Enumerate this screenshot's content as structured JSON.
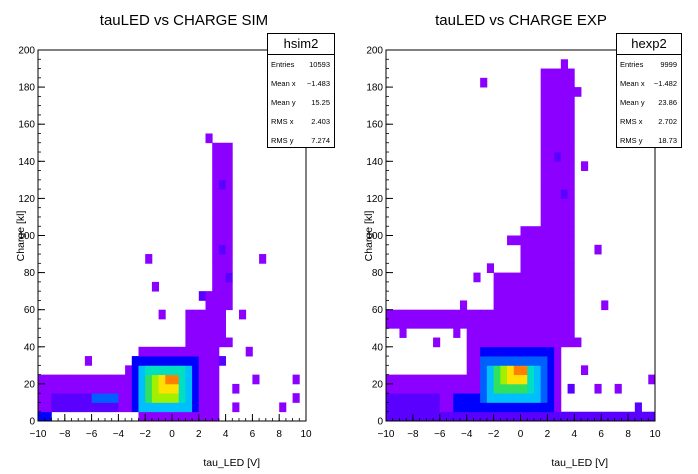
{
  "colors": {
    "palette": [
      "#8B00FF",
      "#5A00FF",
      "#0000FF",
      "#0060FF",
      "#00BFFF",
      "#00E0C0",
      "#30E060",
      "#A0F000",
      "#FFE000",
      "#FF8000",
      "#FF0000"
    ]
  },
  "chart_data": [
    {
      "type": "heatmap",
      "title": "tauLED vs CHARGE SIM",
      "xlabel": "tau_LED [V]",
      "ylabel": "Charge [kl]",
      "xlim": [
        -10,
        10
      ],
      "ylim": [
        0,
        200
      ],
      "bin_size": [
        0.5,
        5
      ],
      "x_ticks": [
        "−10",
        "−8",
        "−6",
        "−4",
        "−2",
        "0",
        "2",
        "4",
        "6",
        "8",
        "10"
      ],
      "y_ticks": [
        "0",
        "20",
        "40",
        "60",
        "80",
        "100",
        "120",
        "140",
        "160",
        "180",
        "200"
      ],
      "grid": false,
      "legend": "top-right",
      "stats": {
        "name": "hsim2",
        "rows": [
          {
            "label": "Entries",
            "value": "10593"
          },
          {
            "label": "Mean x",
            "value": "−1.483"
          },
          {
            "label": "Mean y",
            "value": "15.25"
          },
          {
            "label": "RMS x",
            "value": "2.403"
          },
          {
            "label": "RMS y",
            "value": "7.274"
          }
        ]
      },
      "clusters": [
        {
          "x": [
            -10,
            -2.5
          ],
          "y": [
            5,
            25
          ],
          "level": 1
        },
        {
          "x": [
            -2.5,
            2.5
          ],
          "y": [
            0,
            40
          ],
          "level": 1
        },
        {
          "x": [
            -9,
            -4
          ],
          "y": [
            5,
            15
          ],
          "level": 2
        },
        {
          "x": [
            -3,
            2
          ],
          "y": [
            5,
            35
          ],
          "level": 3
        },
        {
          "x": [
            -6,
            -4
          ],
          "y": [
            10,
            15
          ],
          "level": 4
        },
        {
          "x": [
            -2.5,
            1.5
          ],
          "y": [
            5,
            30
          ],
          "level": 5
        },
        {
          "x": [
            -2,
            1
          ],
          "y": [
            10,
            30
          ],
          "level": 6
        },
        {
          "x": [
            -2,
            0.5
          ],
          "y": [
            10,
            25
          ],
          "level": 7
        },
        {
          "x": [
            -1.5,
            0.5
          ],
          "y": [
            10,
            25
          ],
          "level": 8
        },
        {
          "x": [
            -1,
            0.5
          ],
          "y": [
            15,
            25
          ],
          "level": 9
        },
        {
          "x": [
            -0.5,
            0.5
          ],
          "y": [
            20,
            25
          ],
          "level": 10
        },
        {
          "x": [
            3,
            4.5
          ],
          "y": [
            60,
            150
          ],
          "level": 1
        },
        {
          "x": [
            2.5,
            4
          ],
          "y": [
            40,
            70
          ],
          "level": 1
        },
        {
          "x": [
            2.5,
            3.5
          ],
          "y": [
            0,
            45
          ],
          "level": 1
        },
        {
          "x": [
            1,
            2.5
          ],
          "y": [
            35,
            60
          ],
          "level": 1
        },
        {
          "x": [
            -10,
            -9
          ],
          "y": [
            0,
            5
          ],
          "level": 3
        }
      ],
      "cells": [
        {
          "x": 2.5,
          "y": 150,
          "level": 1
        },
        {
          "x": 3,
          "y": 135,
          "level": 1
        },
        {
          "x": 3.5,
          "y": 125,
          "level": 2
        },
        {
          "x": 4,
          "y": 110,
          "level": 1
        },
        {
          "x": 3.5,
          "y": 90,
          "level": 2
        },
        {
          "x": 4,
          "y": 75,
          "level": 2
        },
        {
          "x": 6.5,
          "y": 85,
          "level": 1
        },
        {
          "x": -2,
          "y": 85,
          "level": 1
        },
        {
          "x": 5,
          "y": 55,
          "level": 1
        },
        {
          "x": -1,
          "y": 55,
          "level": 1
        },
        {
          "x": 1,
          "y": 50,
          "level": 1
        },
        {
          "x": 4,
          "y": 40,
          "level": 1
        },
        {
          "x": 5.5,
          "y": 35,
          "level": 1
        },
        {
          "x": 6,
          "y": 20,
          "level": 1
        },
        {
          "x": 9,
          "y": 20,
          "level": 1
        },
        {
          "x": 8,
          "y": 5,
          "level": 1
        },
        {
          "x": 9,
          "y": 10,
          "level": 1
        },
        {
          "x": 4.5,
          "y": 15,
          "level": 1
        },
        {
          "x": 4.5,
          "y": 5,
          "level": 1
        },
        {
          "x": 3.5,
          "y": 30,
          "level": 2
        },
        {
          "x": -3.5,
          "y": 25,
          "level": 1
        },
        {
          "x": -6.5,
          "y": 30,
          "level": 1
        },
        {
          "x": -1.5,
          "y": 70,
          "level": 1
        },
        {
          "x": 2,
          "y": 65,
          "level": 2
        }
      ]
    },
    {
      "type": "heatmap",
      "title": "tauLED vs CHARGE EXP",
      "xlabel": "tau_LED [V]",
      "ylabel": "Charge [kl]",
      "xlim": [
        -10,
        10
      ],
      "ylim": [
        0,
        200
      ],
      "bin_size": [
        0.5,
        5
      ],
      "x_ticks": [
        "−10",
        "−8",
        "−6",
        "−4",
        "−2",
        "0",
        "2",
        "4",
        "6",
        "8",
        "10"
      ],
      "y_ticks": [
        "0",
        "20",
        "40",
        "60",
        "80",
        "100",
        "120",
        "140",
        "160",
        "180",
        "200"
      ],
      "grid": false,
      "legend": "top-right",
      "stats": {
        "name": "hexp2",
        "rows": [
          {
            "label": "Entries",
            "value": "9999"
          },
          {
            "label": "Mean x",
            "value": "−1.482"
          },
          {
            "label": "Mean y",
            "value": "23.86"
          },
          {
            "label": "RMS x",
            "value": "2.702"
          },
          {
            "label": "RMS y",
            "value": "18.73"
          }
        ]
      },
      "clusters": [
        {
          "x": [
            -10,
            3
          ],
          "y": [
            0,
            25
          ],
          "level": 1
        },
        {
          "x": [
            -4,
            3
          ],
          "y": [
            20,
            60
          ],
          "level": 1
        },
        {
          "x": [
            -10,
            -3
          ],
          "y": [
            50,
            60
          ],
          "level": 1
        },
        {
          "x": [
            -2,
            2
          ],
          "y": [
            55,
            80
          ],
          "level": 1
        },
        {
          "x": [
            1.5,
            4
          ],
          "y": [
            40,
            190
          ],
          "level": 1
        },
        {
          "x": [
            0,
            2.5
          ],
          "y": [
            80,
            105
          ],
          "level": 1
        },
        {
          "x": [
            -10,
            -6
          ],
          "y": [
            5,
            15
          ],
          "level": 2
        },
        {
          "x": [
            -3,
            2.5
          ],
          "y": [
            5,
            40
          ],
          "level": 3
        },
        {
          "x": [
            -5,
            -3
          ],
          "y": [
            5,
            15
          ],
          "level": 3
        },
        {
          "x": [
            -3,
            2
          ],
          "y": [
            10,
            35
          ],
          "level": 4
        },
        {
          "x": [
            -2.5,
            1.5
          ],
          "y": [
            10,
            30
          ],
          "level": 5
        },
        {
          "x": [
            -2,
            1
          ],
          "y": [
            15,
            30
          ],
          "level": 6
        },
        {
          "x": [
            -2,
            0.5
          ],
          "y": [
            15,
            30
          ],
          "level": 7
        },
        {
          "x": [
            -1.5,
            0.5
          ],
          "y": [
            20,
            30
          ],
          "level": 8
        },
        {
          "x": [
            -1,
            0.5
          ],
          "y": [
            20,
            30
          ],
          "level": 9
        },
        {
          "x": [
            -0.5,
            0.5
          ],
          "y": [
            25,
            30
          ],
          "level": 10
        },
        {
          "x": [
            -10,
            10
          ],
          "y": [
            0,
            5
          ],
          "level": 2
        }
      ],
      "cells": [
        {
          "x": 3,
          "y": 190,
          "level": 1
        },
        {
          "x": 2,
          "y": 180,
          "level": 1
        },
        {
          "x": -3,
          "y": 180,
          "level": 1
        },
        {
          "x": 4,
          "y": 175,
          "level": 1
        },
        {
          "x": 1.5,
          "y": 165,
          "level": 1
        },
        {
          "x": 4.5,
          "y": 135,
          "level": 1
        },
        {
          "x": -1,
          "y": 95,
          "level": 1
        },
        {
          "x": -0.5,
          "y": 95,
          "level": 1
        },
        {
          "x": 5.5,
          "y": 90,
          "level": 1
        },
        {
          "x": -2.5,
          "y": 80,
          "level": 1
        },
        {
          "x": -3.5,
          "y": 75,
          "level": 1
        },
        {
          "x": -4.5,
          "y": 60,
          "level": 1
        },
        {
          "x": 6,
          "y": 60,
          "level": 1
        },
        {
          "x": -9,
          "y": 45,
          "level": 1
        },
        {
          "x": -5,
          "y": 45,
          "level": 1
        },
        {
          "x": 4,
          "y": 40,
          "level": 1
        },
        {
          "x": 4.5,
          "y": 25,
          "level": 1
        },
        {
          "x": 5.5,
          "y": 15,
          "level": 1
        },
        {
          "x": 7,
          "y": 15,
          "level": 1
        },
        {
          "x": 9.5,
          "y": 20,
          "level": 1
        },
        {
          "x": 8.5,
          "y": 5,
          "level": 2
        },
        {
          "x": 3.5,
          "y": 15,
          "level": 2
        },
        {
          "x": -6.5,
          "y": 40,
          "level": 1
        },
        {
          "x": 2.5,
          "y": 140,
          "level": 2
        },
        {
          "x": 3,
          "y": 120,
          "level": 2
        }
      ]
    }
  ]
}
